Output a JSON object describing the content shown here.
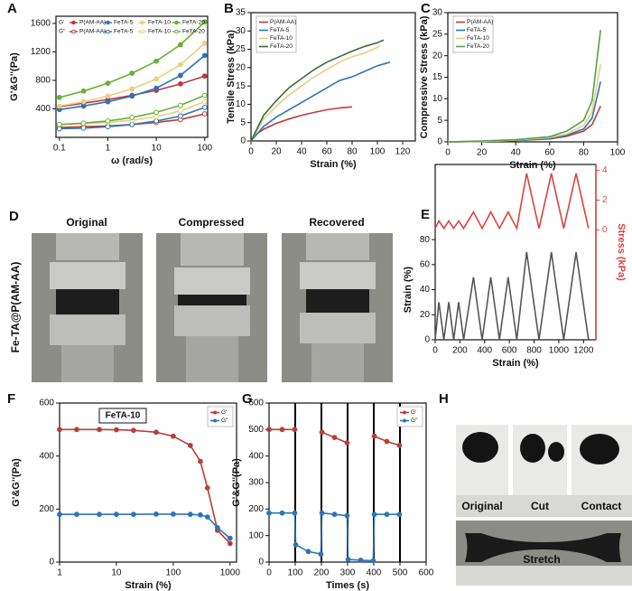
{
  "chart_data": [
    {
      "type": "line",
      "panel_label": "A",
      "xlabel": "ω (rad/s)",
      "ylabel": "G'&G''(Pa)",
      "xlog": true,
      "xlim": [
        0.085,
        115
      ],
      "xticks": [
        0.1,
        1,
        10,
        100
      ],
      "ylim": [
        0,
        1700
      ],
      "yticks": [
        400,
        800,
        1200,
        1600
      ],
      "markers": true,
      "legend": "upper left",
      "legend_groups": [
        "G'",
        "G''"
      ],
      "x": [
        0.1,
        0.316,
        1,
        3.16,
        10,
        31.6,
        100
      ],
      "series": [
        {
          "name": "P(AM-AA)",
          "group": 0,
          "color": "#c0393b",
          "values": [
            430,
            480,
            530,
            590,
            660,
            750,
            860
          ]
        },
        {
          "name": "FeTA-5",
          "group": 0,
          "color": "#2e75b6",
          "values": [
            390,
            440,
            500,
            580,
            690,
            870,
            1150
          ]
        },
        {
          "name": "FeTA-10",
          "group": 0,
          "color": "#e8cf86",
          "values": [
            440,
            500,
            580,
            680,
            820,
            1020,
            1320
          ]
        },
        {
          "name": "FeTA-20",
          "group": 0,
          "color": "#6aae3a",
          "values": [
            560,
            650,
            760,
            900,
            1070,
            1300,
            1620
          ]
        },
        {
          "name": "P(AM-AA)",
          "group": 1,
          "hollow": true,
          "color": "#c0393b",
          "values": [
            140,
            150,
            160,
            180,
            210,
            250,
            330
          ]
        },
        {
          "name": "FeTA-5",
          "group": 1,
          "hollow": true,
          "color": "#2e75b6",
          "values": [
            120,
            130,
            150,
            180,
            230,
            300,
            420
          ]
        },
        {
          "name": "FeTA-10",
          "group": 1,
          "hollow": true,
          "color": "#e8cf86",
          "values": [
            180,
            190,
            210,
            240,
            290,
            370,
            500
          ]
        },
        {
          "name": "FeTA-20",
          "group": 1,
          "hollow": true,
          "color": "#6aae3a",
          "values": [
            180,
            200,
            230,
            280,
            350,
            450,
            590
          ]
        }
      ]
    },
    {
      "type": "line",
      "panel_label": "B",
      "xlabel": "Strain (%)",
      "ylabel": "Tensile Stress (kPa)",
      "xlim": [
        0,
        130
      ],
      "xticks": [
        0,
        20,
        40,
        60,
        80,
        100,
        120
      ],
      "ylim": [
        0,
        35
      ],
      "yticks": [
        0,
        5,
        10,
        15,
        20,
        25,
        30,
        35
      ],
      "legend": "upper left",
      "series": [
        {
          "name": "P(AM-AA)",
          "color": "#c0393b",
          "x": [
            0,
            5,
            10,
            20,
            30,
            40,
            50,
            60,
            70,
            80
          ],
          "values": [
            0,
            2,
            3.2,
            4.8,
            6,
            7,
            7.8,
            8.5,
            9,
            9.3
          ]
        },
        {
          "name": "FeTA-5",
          "color": "#2e75b6",
          "x": [
            0,
            10,
            20,
            30,
            40,
            50,
            60,
            70,
            80,
            90,
            100,
            110
          ],
          "values": [
            0,
            4,
            6.5,
            8.5,
            10.5,
            12.5,
            14.5,
            16.5,
            17.5,
            19,
            20.5,
            21.5
          ]
        },
        {
          "name": "FeTA-10",
          "color": "#e6cf7e",
          "x": [
            0,
            10,
            20,
            30,
            40,
            50,
            60,
            70,
            80,
            90,
            100,
            102
          ],
          "values": [
            0,
            6,
            9.5,
            12.5,
            15,
            17.5,
            19.5,
            21.5,
            23,
            24,
            25.5,
            26
          ]
        },
        {
          "name": "FeTA-20",
          "color": "#3d6b3d",
          "x": [
            0,
            10,
            20,
            30,
            40,
            50,
            60,
            70,
            80,
            90,
            100,
            105
          ],
          "values": [
            0,
            7,
            11,
            14.5,
            17,
            19.5,
            21.5,
            23,
            24.5,
            25.8,
            26.8,
            27.5
          ]
        }
      ]
    },
    {
      "type": "line",
      "panel_label": "C",
      "xlabel": "Strain (%)",
      "ylabel": "Compressive Stress (kPa)",
      "xlim": [
        0,
        100
      ],
      "xticks": [
        0,
        20,
        40,
        60,
        80,
        100
      ],
      "ylim": [
        0,
        30
      ],
      "yticks": [
        0,
        5,
        10,
        15,
        20,
        25,
        30
      ],
      "legend": "upper left",
      "x": [
        0,
        20,
        40,
        60,
        70,
        80,
        85,
        90
      ],
      "series": [
        {
          "name": "P(AM-AA)",
          "color": "#b5403c",
          "values": [
            0,
            0.1,
            0.3,
            0.7,
            1.3,
            2.5,
            4,
            8.3
          ]
        },
        {
          "name": "FeTA-5",
          "color": "#2e75b6",
          "values": [
            0,
            0.1,
            0.3,
            0.8,
            1.5,
            3,
            5.5,
            14
          ]
        },
        {
          "name": "FeTA-10",
          "color": "#e6cf7e",
          "values": [
            0,
            0.1,
            0.4,
            1,
            1.8,
            3.8,
            7,
            18
          ]
        },
        {
          "name": "FeTA-20",
          "color": "#5a9e4a",
          "values": [
            0,
            0.2,
            0.5,
            1.2,
            2.5,
            5,
            9.5,
            26
          ]
        }
      ]
    },
    {
      "type": "line",
      "panel_label": "E",
      "xlabel": "Strain (%)",
      "ylabel": "Strain (%)",
      "y2label": "Stress (kPa)",
      "y2color": "#e04040",
      "xlim": [
        0,
        1300
      ],
      "xticks": [
        0,
        200,
        400,
        600,
        800,
        1000,
        1200
      ],
      "ylim": [
        0,
        140
      ],
      "yticks": [
        0,
        20,
        40,
        60,
        80
      ],
      "y2lim": [
        -7.4,
        4.4
      ],
      "y2ticks": [
        0,
        2,
        4
      ],
      "x": [
        0,
        30,
        70,
        110,
        150,
        190,
        230,
        310,
        380,
        450,
        520,
        590,
        660,
        740,
        840,
        940,
        1040,
        1140,
        1240
      ],
      "series": [
        {
          "color": "#555555",
          "values": [
            0,
            30,
            0,
            30,
            0,
            30,
            0,
            50,
            0,
            50,
            0,
            50,
            0,
            70,
            0,
            70,
            0,
            70,
            0
          ]
        },
        {
          "color": "#e04040",
          "axis": "y2",
          "values": [
            0.1,
            0.6,
            0.1,
            0.6,
            0.1,
            0.6,
            0.1,
            1.2,
            0.1,
            1.2,
            0.1,
            1.2,
            0.1,
            3.8,
            0.1,
            3.8,
            0.1,
            3.8,
            0.1
          ]
        }
      ]
    },
    {
      "type": "line",
      "panel_label": "F",
      "xlabel": "Strain (%)",
      "ylabel": "G'&G''(Pa)",
      "xlog": true,
      "annotation": "FeTA-10",
      "xlim": [
        1,
        1300
      ],
      "xticks": [
        1,
        10,
        100,
        1000
      ],
      "ylim": [
        0,
        600
      ],
      "yticks": [
        0,
        200,
        400,
        600
      ],
      "markers": true,
      "legend": "upper right",
      "x": [
        1,
        2,
        5,
        10,
        20,
        50,
        100,
        200,
        300,
        400,
        600,
        1000
      ],
      "series": [
        {
          "name": "G'",
          "color": "#b5403c",
          "values": [
            500,
            500,
            500,
            499,
            497,
            490,
            475,
            440,
            380,
            280,
            120,
            70
          ]
        },
        {
          "name": "G''",
          "color": "#2e75b6",
          "values": [
            180,
            180,
            180,
            180,
            180,
            181,
            181,
            180,
            178,
            170,
            130,
            90
          ]
        }
      ]
    },
    {
      "type": "line",
      "panel_label": "G",
      "xlabel": "Times (s)",
      "ylabel": "G'&G''(Pa)",
      "xlim": [
        0,
        600
      ],
      "xticks": [
        0,
        100,
        200,
        300,
        400,
        500,
        600
      ],
      "ylim": [
        0,
        600
      ],
      "yticks": [
        0,
        100,
        200,
        300,
        400,
        500,
        600
      ],
      "markers": true,
      "legend": "upper right",
      "vlines": [
        100,
        200,
        300,
        400,
        500
      ],
      "x": [
        0,
        50,
        98,
        102,
        150,
        198,
        202,
        250,
        298,
        302,
        350,
        398,
        402,
        450,
        498
      ],
      "series": [
        {
          "name": "G'",
          "color": "#b5403c",
          "values": [
            500,
            500,
            500,
            null,
            null,
            null,
            490,
            470,
            450,
            null,
            null,
            null,
            475,
            455,
            440
          ]
        },
        {
          "name": "G''",
          "color": "#2e75b6",
          "values": [
            185,
            185,
            185,
            65,
            40,
            30,
            185,
            180,
            175,
            10,
            7,
            5,
            180,
            180,
            180
          ]
        }
      ]
    }
  ],
  "photo_panels": [
    {
      "panel_label": "D",
      "side_label": "Fe-TA@P(AM-AA)",
      "captions": [
        "Original",
        "Compressed",
        "Recovered"
      ]
    },
    {
      "panel_label": "H",
      "captions": [
        "Original",
        "Cut",
        "Contact",
        "Stretch"
      ]
    }
  ]
}
